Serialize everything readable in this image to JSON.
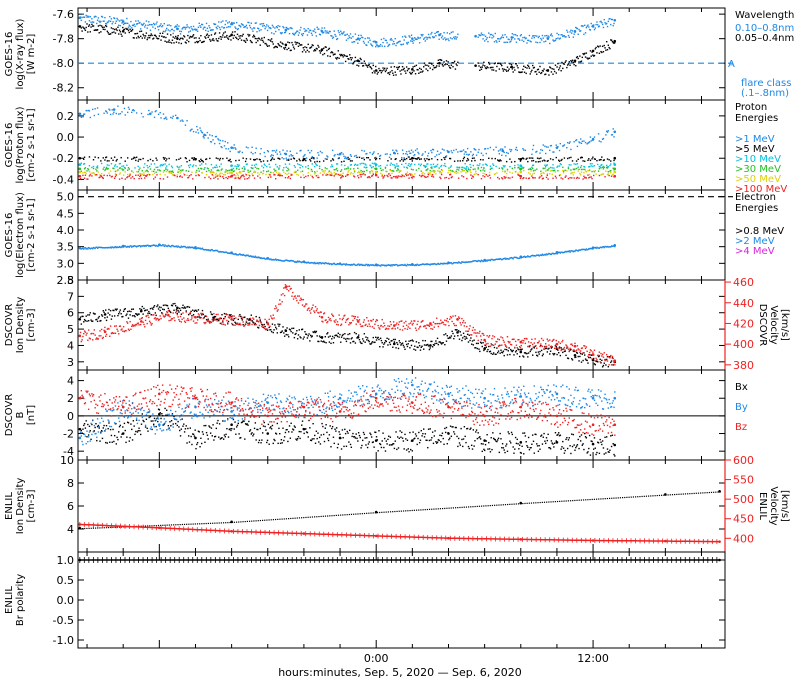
{
  "colors": {
    "black": "#000000",
    "blue": "#1e88e5",
    "cyan": "#00c0e0",
    "green": "#22c022",
    "yellow": "#e0d000",
    "orange": "#ff8000",
    "red": "#ee2222",
    "magenta": "#dd22dd"
  },
  "footer": {
    "time_axis_label": "hours:minutes, Sep.  5, 2020 — Sep.  6, 2020"
  },
  "chart_data": [
    {
      "type": "scatter",
      "id": "xray",
      "ylabel": [
        "GOES-16",
        "log(X-ray flux)",
        "[W m-2]"
      ],
      "ylim": [
        -8.3,
        -7.55
      ],
      "yticks": [
        -7.6,
        -7.8,
        -8.0,
        -8.2
      ],
      "threshold": {
        "value": -8.0,
        "label": "A"
      },
      "legend_title": [
        "Wavelength"
      ],
      "legend": [
        {
          "text": "0.10–0.8nm",
          "color": "blue"
        },
        {
          "text": "0.05–0.4nm",
          "color": "black"
        }
      ],
      "note": [
        "flare class",
        "(.1–.8nm)"
      ],
      "series": [
        {
          "name": "0.10–0.8nm",
          "color": "blue",
          "x": [
            -16.4,
            -14,
            -11,
            -8,
            -5,
            -3,
            -1,
            0,
            2,
            3.5,
            5.5,
            7.5,
            9.5,
            11,
            12,
            13.2
          ],
          "y": [
            -7.63,
            -7.66,
            -7.72,
            -7.68,
            -7.73,
            -7.74,
            -7.8,
            -7.83,
            -7.8,
            -7.77,
            -7.78,
            -7.79,
            -7.8,
            -7.74,
            -7.7,
            -7.65
          ],
          "gaps": [
            [
              4.5,
              5.6
            ]
          ]
        },
        {
          "name": "0.05–0.4nm",
          "color": "black",
          "x": [
            -16.4,
            -14,
            -11,
            -8,
            -5,
            -3,
            -1,
            0,
            2,
            3.5,
            5.5,
            7.5,
            9.5,
            11,
            12,
            13.2
          ],
          "y": [
            -7.7,
            -7.74,
            -7.8,
            -7.77,
            -7.85,
            -7.89,
            -7.98,
            -8.06,
            -8.05,
            -8.0,
            -8.02,
            -8.03,
            -8.06,
            -7.98,
            -7.9,
            -7.82
          ],
          "gaps": [
            [
              4.5,
              5.6
            ]
          ]
        }
      ]
    },
    {
      "type": "scatter",
      "id": "proton",
      "ylabel": [
        "GOES-16",
        "log(Proton flux)",
        "[cm-2 s-1 sr-1]"
      ],
      "ylim": [
        -0.5,
        0.35
      ],
      "yticks": [
        0.2,
        0.0,
        -0.2,
        -0.4
      ],
      "legend_title": [
        "Proton",
        "Energies"
      ],
      "legend": [
        {
          "text": ">1 MeV",
          "color": "blue"
        },
        {
          "text": ">5 MeV",
          "color": "black"
        },
        {
          "text": ">10 MeV",
          "color": "cyan"
        },
        {
          "text": ">30 MeV",
          "color": "green"
        },
        {
          "text": ">50 MeV",
          "color": "yellow"
        },
        {
          "text": ">100 MeV",
          "color": "red"
        }
      ],
      "series": [
        {
          "name": ">1 MeV",
          "color": "blue",
          "x": [
            -16.4,
            -14.5,
            -12.5,
            -11,
            -9.5,
            -8,
            -5,
            -2,
            1,
            4,
            7,
            10,
            12,
            13.2
          ],
          "y": [
            0.22,
            0.26,
            0.22,
            0.18,
            0.02,
            -0.1,
            -0.16,
            -0.16,
            -0.15,
            -0.14,
            -0.13,
            -0.1,
            -0.02,
            0.05
          ]
        },
        {
          "name": ">5 MeV",
          "color": "black",
          "x": [
            -16.4,
            -10,
            -4,
            2,
            8,
            13.2
          ],
          "y": [
            -0.2,
            -0.21,
            -0.21,
            -0.2,
            -0.21,
            -0.2
          ]
        },
        {
          "name": ">10 MeV",
          "color": "cyan",
          "x": [
            -16.4,
            -8,
            0,
            8,
            13.2
          ],
          "y": [
            -0.26,
            -0.27,
            -0.26,
            -0.27,
            -0.26
          ]
        },
        {
          "name": ">30 MeV",
          "color": "green",
          "x": [
            -16.4,
            -8,
            0,
            8,
            13.2
          ],
          "y": [
            -0.3,
            -0.31,
            -0.3,
            -0.3,
            -0.3
          ]
        },
        {
          "name": ">50 MeV",
          "color": "yellow",
          "x": [
            -16.4,
            -8,
            0,
            8,
            13.2
          ],
          "y": [
            -0.33,
            -0.34,
            -0.33,
            -0.33,
            -0.33
          ]
        },
        {
          "name": ">100 MeV",
          "color": "red",
          "x": [
            -16.4,
            -8,
            0,
            8,
            13.2
          ],
          "y": [
            -0.37,
            -0.37,
            -0.36,
            -0.37,
            -0.37
          ]
        }
      ]
    },
    {
      "type": "scatter",
      "id": "electron",
      "ylabel": [
        "GOES-16",
        "log(Electron flux)",
        "[cm-2 s-1 sr-1]"
      ],
      "ylim": [
        2.5,
        5.2
      ],
      "yticks": [
        5.0,
        4.5,
        4.0,
        3.5,
        3.0,
        2.5
      ],
      "threshold": {
        "value": 5.0
      },
      "legend_title": [
        "Electron",
        "Energies"
      ],
      "legend": [
        {
          "text": ">0.8 MeV",
          "color": "black"
        },
        {
          "text": ">2 MeV",
          "color": "blue"
        },
        {
          "text": ">4 MeV",
          "color": "magenta"
        }
      ],
      "series": [
        {
          "name": ">2 MeV",
          "color": "blue",
          "x": [
            -16.4,
            -14,
            -12,
            -10,
            -8,
            -6,
            -4,
            -2,
            0,
            2,
            4,
            6,
            8,
            10,
            12,
            13.2
          ],
          "y": [
            3.46,
            3.52,
            3.56,
            3.48,
            3.32,
            3.15,
            3.05,
            2.99,
            2.96,
            2.97,
            3.02,
            3.1,
            3.2,
            3.33,
            3.47,
            3.54
          ]
        }
      ]
    },
    {
      "type": "scatter",
      "id": "dscovr_density",
      "ylabel": [
        "DSCOVR",
        "Ion Density",
        "[cm-3]"
      ],
      "ylim": [
        2.5,
        8.0
      ],
      "yticks": [
        3,
        4,
        5,
        6,
        7,
        8
      ],
      "y2label": [
        "DSCOVR",
        "Velocity",
        "[km/s]"
      ],
      "y2lim": [
        375,
        462
      ],
      "y2ticks": [
        380,
        400,
        420,
        440,
        460
      ],
      "series": [
        {
          "name": "Ion Density",
          "color": "black",
          "axis": "left",
          "x": [
            -16.4,
            -15,
            -13,
            -11,
            -9,
            -7,
            -5,
            -3,
            -1,
            1,
            3,
            4.5,
            6,
            8,
            10,
            11,
            12,
            13.2
          ],
          "y": [
            5.6,
            5.9,
            6.1,
            6.3,
            5.7,
            5.6,
            4.9,
            4.5,
            4.5,
            4.1,
            4.0,
            4.8,
            3.8,
            3.6,
            3.8,
            3.4,
            3.1,
            3.0
          ]
        },
        {
          "name": "Velocity",
          "color": "red",
          "axis": "right",
          "x": [
            -16.4,
            -15,
            -13,
            -11.5,
            -10,
            -8,
            -6,
            -5,
            -3,
            -1,
            1,
            3,
            4.5,
            6,
            8,
            10,
            11,
            12,
            13.2
          ],
          "y": [
            408,
            412,
            422,
            428,
            426,
            424,
            420,
            455,
            426,
            422,
            418,
            420,
            424,
            404,
            402,
            400,
            398,
            390,
            384
          ]
        }
      ]
    },
    {
      "type": "scatter",
      "id": "dscovr_b",
      "ylabel": [
        "DSCOVR",
        "B",
        "[nT]"
      ],
      "ylim": [
        -5,
        5.2
      ],
      "yticks": [
        4,
        2,
        0,
        -2,
        -4
      ],
      "zero_line": true,
      "legend": [
        {
          "text": "Bx",
          "color": "black"
        },
        {
          "text": "By",
          "color": "blue"
        },
        {
          "text": "Bz",
          "color": "red"
        }
      ],
      "series": [
        {
          "name": "Bx",
          "color": "black",
          "x": [
            -16.4,
            -14,
            -12,
            -10,
            -8,
            -6,
            -4,
            -2,
            0,
            2,
            4,
            6,
            8,
            10,
            12,
            13.2
          ],
          "y": [
            -1.5,
            -2.0,
            0.2,
            -2.5,
            -1.0,
            -2.0,
            -1.5,
            -2.5,
            -2.8,
            -2.8,
            -2.0,
            -2.8,
            -3.0,
            -3.0,
            -3.2,
            -3.3
          ]
        },
        {
          "name": "By",
          "color": "blue",
          "x": [
            -16.4,
            -14,
            -12,
            -10,
            -8,
            -6,
            -4,
            -2,
            0,
            2,
            4,
            6,
            8,
            10,
            12,
            13.2
          ],
          "y": [
            -2.5,
            1.0,
            -1.0,
            1.0,
            0.5,
            1.5,
            1.0,
            2.0,
            2.5,
            3.5,
            2.5,
            2.0,
            2.2,
            2.5,
            2.0,
            2.0
          ]
        },
        {
          "name": "Bz",
          "color": "red",
          "x": [
            -16.4,
            -14,
            -12,
            -10,
            -8,
            -6,
            -4,
            -2,
            0,
            2,
            4,
            6,
            8,
            10,
            12,
            13.2
          ],
          "y": [
            2.0,
            1.0,
            2.5,
            2.0,
            1.5,
            0.0,
            1.0,
            0.5,
            2.0,
            1.5,
            1.0,
            0.0,
            1.0,
            0.0,
            -1.0,
            -1.0
          ]
        }
      ]
    },
    {
      "type": "line",
      "id": "enlil_density",
      "ylabel": [
        "ENLIL",
        "Ion Density",
        "[cm-3]"
      ],
      "ylim": [
        2,
        10
      ],
      "yticks": [
        4,
        6,
        8,
        10
      ],
      "y2label": [
        "ENLIL",
        "Velocity",
        "[km/s]"
      ],
      "y2lim": [
        365,
        600
      ],
      "y2ticks": [
        400,
        450,
        500,
        550,
        600
      ],
      "series": [
        {
          "name": "Velocity",
          "color": "black",
          "axis": "right",
          "x": [
            -16.4,
            -8,
            0,
            8,
            16,
            19
          ],
          "y": [
            426,
            442,
            467,
            490,
            512,
            520
          ]
        },
        {
          "name": "Ion Density",
          "color": "red",
          "axis": "left",
          "x": [
            -16.4,
            -12,
            -8,
            -4,
            0,
            4,
            8,
            12,
            16,
            19
          ],
          "y": [
            4.4,
            4.1,
            3.8,
            3.6,
            3.4,
            3.2,
            3.1,
            3.0,
            2.95,
            2.9
          ]
        }
      ]
    },
    {
      "type": "line",
      "id": "enlil_polarity",
      "ylabel": [
        "ENLIL",
        "Br polarity"
      ],
      "ylim": [
        -1.2,
        1.2
      ],
      "yticks": [
        1.0,
        0.5,
        0.0,
        -0.5,
        -1.0
      ],
      "series": [
        {
          "name": "Br polarity",
          "color": "black",
          "x": [
            -16.4,
            19
          ],
          "y": [
            1.0,
            1.0
          ]
        }
      ]
    }
  ],
  "time_axis": {
    "xlim": [
      -16.5,
      19.3
    ],
    "ticks": [
      {
        "x": 0,
        "label": "0:00"
      },
      {
        "x": 12,
        "label": "12:00"
      }
    ]
  }
}
